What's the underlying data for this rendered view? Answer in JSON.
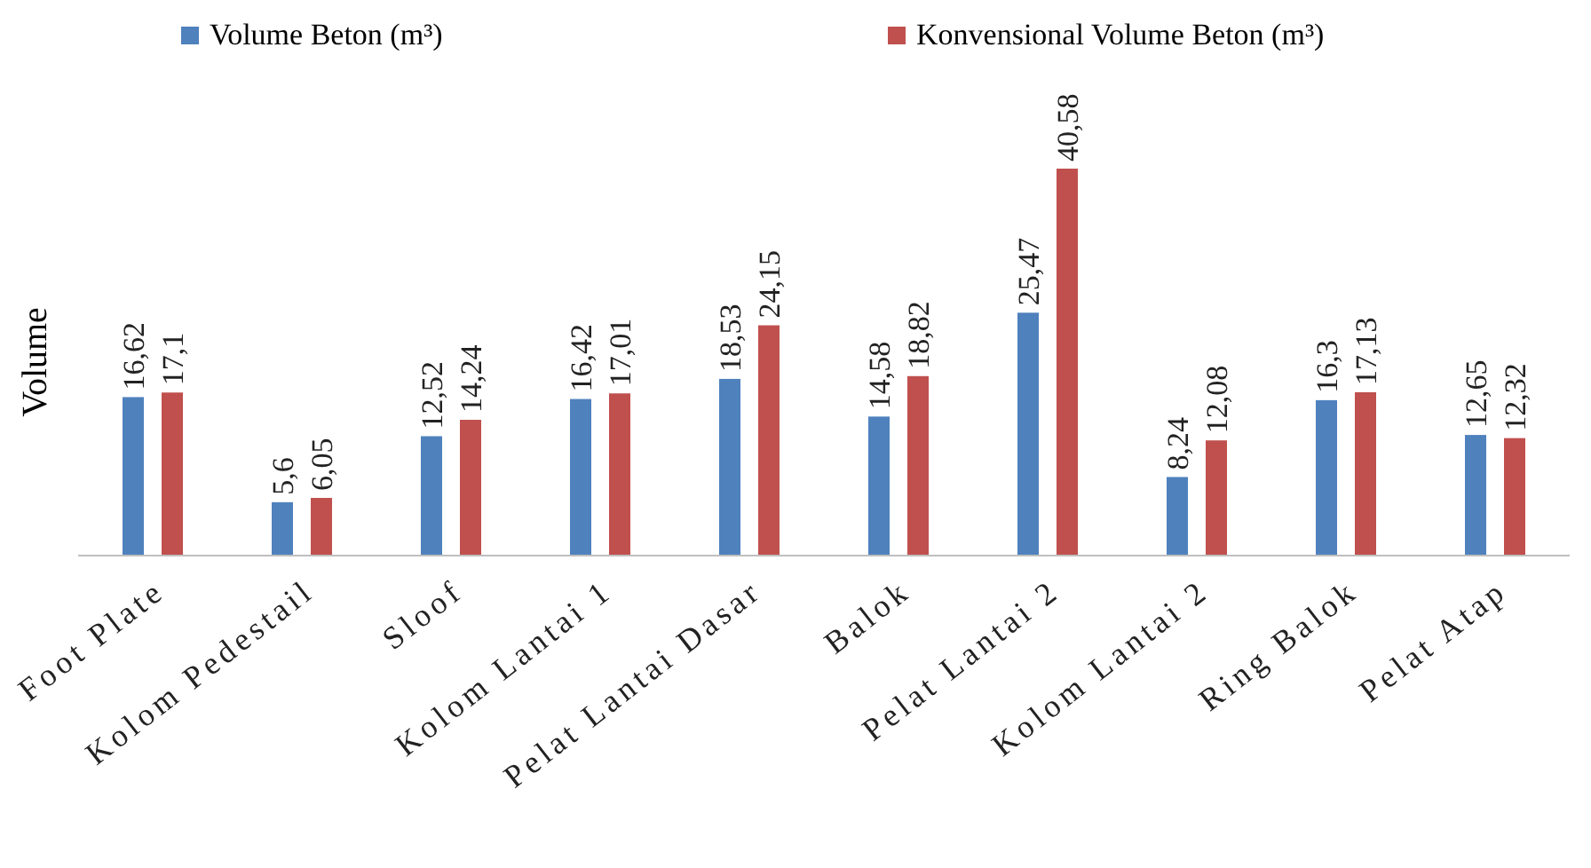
{
  "chart_data": {
    "type": "bar",
    "ylabel": "Volume",
    "categories": [
      "Foot Plate",
      "Kolom Pedestail",
      "Sloof",
      "Kolom Lantai 1",
      "Pelat Lantai Dasar",
      "Balok",
      "Pelat Lantai 2",
      "Kolom Lantai 2",
      "Ring Balok",
      "Pelat Atap"
    ],
    "series": [
      {
        "name": "Volume Beton (m³)",
        "color": "#4f81bd",
        "values": [
          16.62,
          5.6,
          12.52,
          16.42,
          18.53,
          14.58,
          25.47,
          8.24,
          16.3,
          12.65
        ],
        "value_labels": [
          "16,62",
          "5,6",
          "12,52",
          "16,42",
          "18,53",
          "14,58",
          "25,47",
          "8,24",
          "16,3",
          "12,65"
        ]
      },
      {
        "name": "Konvensional Volume Beton (m³)",
        "color": "#c0504d",
        "values": [
          17.1,
          6.05,
          14.24,
          17.01,
          24.15,
          18.82,
          40.58,
          12.08,
          17.13,
          12.32
        ],
        "value_labels": [
          "17,1",
          "6,05",
          "14,24",
          "17,01",
          "24,15",
          "18,82",
          "40,58",
          "12,08",
          "17,13",
          "12,32"
        ]
      }
    ],
    "legend": "top",
    "grid": false
  }
}
